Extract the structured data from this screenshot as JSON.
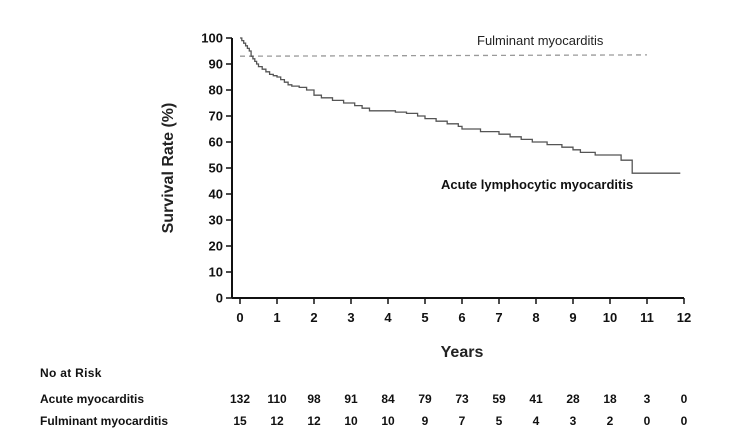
{
  "chart_data": {
    "type": "line",
    "xlabel": "Years",
    "ylabel": "Survival Rate (%)",
    "xlim": [
      0,
      12
    ],
    "ylim": [
      0,
      100
    ],
    "x_ticks": [
      "0",
      "1",
      "2",
      "3",
      "4",
      "5",
      "6",
      "7",
      "8",
      "9",
      "10",
      "11",
      "12"
    ],
    "y_ticks": [
      "0",
      "10",
      "20",
      "30",
      "40",
      "50",
      "60",
      "70",
      "80",
      "90",
      "100"
    ],
    "grid": false,
    "series": [
      {
        "name": "Fulminant myocarditis",
        "style": "dashed",
        "color": "#9a9a9a",
        "points": [
          [
            0,
            93
          ],
          [
            0.1,
            93
          ],
          [
            11,
            93.5
          ]
        ]
      },
      {
        "name": "Acute lymphocytic myocarditis",
        "style": "solid",
        "color": "#555555",
        "points": [
          [
            0,
            100
          ],
          [
            0.05,
            99
          ],
          [
            0.1,
            98
          ],
          [
            0.15,
            97
          ],
          [
            0.2,
            96
          ],
          [
            0.25,
            95
          ],
          [
            0.3,
            93
          ],
          [
            0.35,
            92
          ],
          [
            0.4,
            91
          ],
          [
            0.45,
            90
          ],
          [
            0.5,
            89
          ],
          [
            0.6,
            88
          ],
          [
            0.7,
            87
          ],
          [
            0.8,
            86
          ],
          [
            0.9,
            85.5
          ],
          [
            1,
            85
          ],
          [
            1.1,
            84
          ],
          [
            1.2,
            83
          ],
          [
            1.3,
            82
          ],
          [
            1.4,
            81.5
          ],
          [
            1.6,
            81
          ],
          [
            1.8,
            80
          ],
          [
            2,
            78
          ],
          [
            2.2,
            77
          ],
          [
            2.5,
            76
          ],
          [
            2.8,
            75
          ],
          [
            3.1,
            74
          ],
          [
            3.3,
            73
          ],
          [
            3.5,
            72
          ],
          [
            4,
            72
          ],
          [
            4.2,
            71.5
          ],
          [
            4.5,
            71
          ],
          [
            4.8,
            70
          ],
          [
            5,
            69
          ],
          [
            5.3,
            68
          ],
          [
            5.6,
            67
          ],
          [
            5.9,
            66
          ],
          [
            6,
            65
          ],
          [
            6.5,
            64
          ],
          [
            7,
            63
          ],
          [
            7.3,
            62
          ],
          [
            7.6,
            61
          ],
          [
            7.9,
            60
          ],
          [
            8.3,
            59
          ],
          [
            8.7,
            58
          ],
          [
            9,
            57
          ],
          [
            9.2,
            56
          ],
          [
            9.6,
            55
          ],
          [
            10,
            55
          ],
          [
            10.3,
            53
          ],
          [
            10.6,
            48
          ],
          [
            11.2,
            48
          ],
          [
            11.9,
            48
          ]
        ]
      }
    ],
    "labels": {
      "fulminant": "Fulminant myocarditis",
      "acute": "Acute lymphocytic myocarditis"
    }
  },
  "risk_table": {
    "heading": "No at Risk",
    "rows": [
      {
        "name": "Acute myocarditis",
        "values": [
          "132",
          "110",
          "98",
          "91",
          "84",
          "79",
          "73",
          "59",
          "41",
          "28",
          "18",
          "3",
          "0"
        ]
      },
      {
        "name": "Fulminant myocarditis",
        "values": [
          "15",
          "12",
          "12",
          "10",
          "10",
          "9",
          "7",
          "5",
          "4",
          "3",
          "2",
          "0",
          "0"
        ]
      }
    ]
  }
}
